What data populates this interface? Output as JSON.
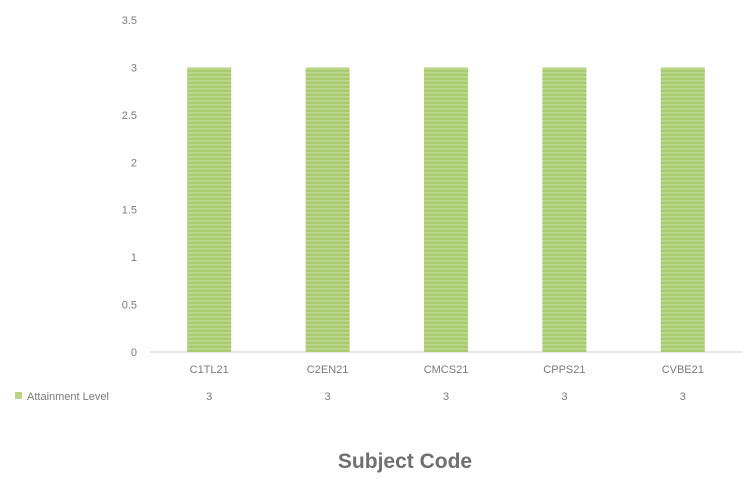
{
  "chart_data": {
    "type": "bar",
    "categories": [
      "C1TL21",
      "C2EN21",
      "CMCS21",
      "CPPS21",
      "CVBE21"
    ],
    "series": [
      {
        "name": "Attainment Level",
        "values": [
          3,
          3,
          3,
          3,
          3
        ]
      }
    ],
    "title": "",
    "xlabel": "Subject Code",
    "ylabel": "",
    "ylim": [
      0,
      3.5
    ],
    "yticks": [
      "0",
      "0.5",
      "1",
      "1.5",
      "2",
      "2.5",
      "3",
      "3.5"
    ],
    "data_table": true,
    "legend": "data-table",
    "grid": false,
    "colors": {
      "bar": "#b9d68a",
      "bar_stripe": "#9fc463",
      "text": "#7a7a7a",
      "axis": "#d0d0d0",
      "xlabel": "#6f6f6f"
    }
  }
}
